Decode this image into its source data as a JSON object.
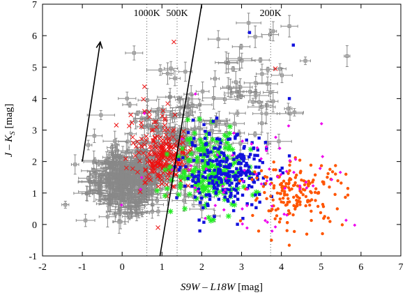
{
  "chart_data": {
    "type": "scatter",
    "xlabel_main": "S9W – L18W",
    "xlabel_unit": " [mag]",
    "ylabel_main": "J – K",
    "ylabel_sub": "S",
    "ylabel_unit": " [mag]",
    "xlim": [
      -2,
      7
    ],
    "ylim": [
      -1,
      7
    ],
    "x_ticks": [
      -2,
      -1,
      0,
      1,
      2,
      3,
      4,
      5,
      6,
      7
    ],
    "y_ticks": [
      -1,
      0,
      1,
      2,
      3,
      4,
      5,
      6,
      7
    ],
    "x_tick_labels": [
      "-2",
      "-1",
      "0",
      "1",
      "2",
      "3",
      "4",
      "5",
      "6",
      "7"
    ],
    "y_tick_labels": [
      "-1",
      "0",
      "1",
      "2",
      "3",
      "4",
      "5",
      "6",
      "7"
    ],
    "temperature_lines": [
      {
        "label": "1000K",
        "x": 0.62
      },
      {
        "label": "500K",
        "x": 1.38
      },
      {
        "label": "200K",
        "x": 3.73
      }
    ],
    "separator_line": {
      "x": [
        0.95,
        2.0
      ],
      "y": [
        -1,
        7
      ]
    },
    "reddening_vector": {
      "x": [
        -1.0,
        -0.55
      ],
      "y": [
        2.0,
        5.8
      ]
    },
    "colors": {
      "gray": "#888888",
      "red": "#ee1111",
      "green": "#22ee22",
      "blue": "#1111dd",
      "orange": "#ff5500",
      "magenta": "#ee00ee"
    },
    "series": [
      {
        "marker": "errorbar-box",
        "color": "#888888",
        "center": [
          0.1,
          1.4
        ],
        "spread": [
          0.45,
          0.5
        ],
        "n": 320
      },
      {
        "marker": "errorbar-box",
        "color": "#888888",
        "center": [
          1.3,
          2.5
        ],
        "spread": [
          0.7,
          0.9
        ],
        "n": 170
      },
      {
        "marker": "errorbar-box",
        "color": "#888888",
        "center": [
          2.6,
          4.3
        ],
        "spread": [
          0.9,
          0.9
        ],
        "n": 60
      },
      {
        "marker": "x",
        "color": "#ee1111",
        "center": [
          1.05,
          2.1
        ],
        "spread": [
          0.3,
          0.4
        ],
        "n": 220
      },
      {
        "marker": "x",
        "color": "#ee1111",
        "center": [
          0.7,
          3.3
        ],
        "spread": [
          0.3,
          0.6
        ],
        "n": 40
      },
      {
        "marker": "star",
        "color": "#22ee22",
        "center": [
          2.2,
          1.7
        ],
        "spread": [
          0.45,
          0.6
        ],
        "n": 200
      },
      {
        "marker": "square",
        "color": "#1111dd",
        "center": [
          2.6,
          1.6
        ],
        "spread": [
          0.55,
          0.6
        ],
        "n": 270
      },
      {
        "marker": "circle",
        "color": "#ff5500",
        "center": [
          4.4,
          1.0
        ],
        "spread": [
          0.6,
          0.5
        ],
        "n": 180
      },
      {
        "marker": "diamond",
        "color": "#ee00ee",
        "center": [
          3.3,
          1.6
        ],
        "spread": [
          1.3,
          0.9
        ],
        "n": 70
      }
    ],
    "outliers": [
      {
        "marker": "x",
        "color": "#ee1111",
        "x": 1.3,
        "y": 5.8
      },
      {
        "marker": "x",
        "color": "#ee1111",
        "x": 3.85,
        "y": 4.95
      },
      {
        "marker": "x",
        "color": "#ee1111",
        "x": 0.9,
        "y": -0.1
      },
      {
        "marker": "square",
        "color": "#1111dd",
        "x": 3.2,
        "y": 6.1
      },
      {
        "marker": "square",
        "color": "#1111dd",
        "x": 4.3,
        "y": 5.7
      },
      {
        "marker": "square",
        "color": "#1111dd",
        "x": 4.2,
        "y": 4.0
      },
      {
        "marker": "circle",
        "color": "#ff5500",
        "x": 3.75,
        "y": -0.5
      },
      {
        "marker": "errorbar-box",
        "color": "#888888",
        "x": 5.65,
        "y": 5.35
      },
      {
        "marker": "errorbar-box",
        "color": "#888888",
        "x": 4.2,
        "y": 6.3
      },
      {
        "marker": "errorbar-box",
        "color": "#888888",
        "x": 0.3,
        "y": 5.45
      }
    ]
  }
}
